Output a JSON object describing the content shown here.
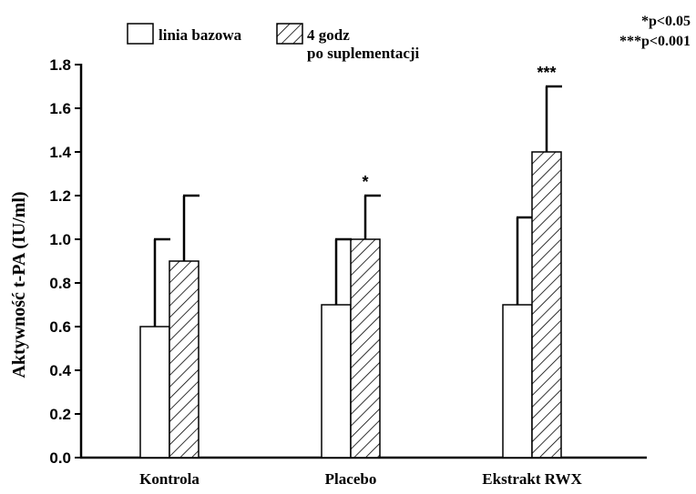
{
  "chart_data": {
    "type": "bar",
    "ylabel": "Aktywność t-PA (IU/ml)",
    "xlabel": "",
    "ylim": [
      0,
      1.8
    ],
    "y_ticks": [
      "0.0",
      "0.2",
      "0.4",
      "0.6",
      "0.8",
      "1.0",
      "1.2",
      "1.4",
      "1.6",
      "1.8"
    ],
    "categories": [
      "Kontrola",
      "Placebo",
      "Ekstrakt RWX"
    ],
    "series": [
      {
        "name": "linia bazowa",
        "pattern": "open",
        "values": [
          0.6,
          0.7,
          0.7
        ],
        "error_upper": [
          1.0,
          1.0,
          1.1
        ]
      },
      {
        "name": "4 godz po suplementacji",
        "name_lines": [
          "4 godz",
          "po suplementacji"
        ],
        "pattern": "hatched",
        "values": [
          0.9,
          1.0,
          1.4
        ],
        "error_upper": [
          1.2,
          1.2,
          1.7
        ]
      }
    ],
    "significance_marks": [
      {
        "category": "Placebo",
        "series": 1,
        "label": "*"
      },
      {
        "category": "Ekstrakt RWX",
        "series": 1,
        "label": "***"
      }
    ],
    "legend": {
      "placement": "top-left"
    },
    "significance_legend": [
      "*p<0.05",
      "***p<0.001"
    ],
    "grid": false,
    "colors": {
      "bar_outline": "#000000",
      "bar_fill": "#ffffff",
      "hatch": "#000000"
    }
  }
}
